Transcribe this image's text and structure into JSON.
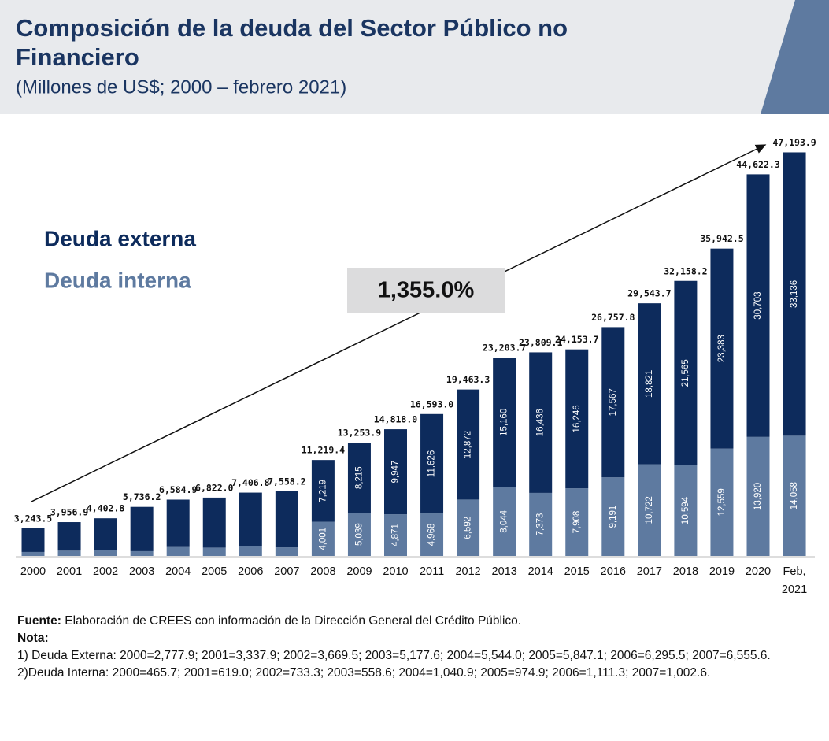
{
  "header": {
    "title_lines": [
      "Composición de la deuda del Sector Público no",
      "Financiero"
    ],
    "subtitle": "(Millones de US$; 2000 – febrero 2021)"
  },
  "chart_data": {
    "type": "stacked_bar",
    "categories": [
      "2000",
      "2001",
      "2002",
      "2003",
      "2004",
      "2005",
      "2006",
      "2007",
      "2008",
      "2009",
      "2010",
      "2011",
      "2012",
      "2013",
      "2014",
      "2015",
      "2016",
      "2017",
      "2018",
      "2019",
      "2020",
      "Feb, 2021"
    ],
    "series": [
      {
        "name": "Deuda interna",
        "color": "#5e7aa0",
        "values": [
          465.7,
          619.0,
          733.3,
          558.6,
          1040.9,
          974.9,
          1111.3,
          1002.6,
          4001,
          5039,
          4871,
          4968,
          6592,
          8044,
          7373,
          7908,
          9191,
          10722,
          10594,
          12559,
          13920,
          14058
        ],
        "value_labels": [
          null,
          null,
          null,
          null,
          null,
          null,
          null,
          null,
          "4,001",
          "5,039",
          "4,871",
          "4,968",
          "6,592",
          "8,044",
          "7,373",
          "7,908",
          "9,191",
          "10,722",
          "10,594",
          "12,559",
          "13,920",
          "14,058"
        ]
      },
      {
        "name": "Deuda externa",
        "color": "#0d2b5c",
        "values": [
          2777.9,
          3337.9,
          3669.5,
          5177.6,
          5544.0,
          5847.1,
          6295.5,
          6555.6,
          7219,
          8215,
          9947,
          11626,
          12872,
          15160,
          16436,
          16246,
          17567,
          18821,
          21565,
          23383,
          30703,
          33136
        ],
        "value_labels": [
          null,
          null,
          null,
          null,
          null,
          null,
          null,
          null,
          "7,219",
          "8,215",
          "9,947",
          "11,626",
          "12,872",
          "15,160",
          "16,436",
          "16,246",
          "17,567",
          "18,821",
          "21,565",
          "23,383",
          "30,703",
          "33,136"
        ]
      }
    ],
    "total_labels": [
      "3,243.5",
      "3,956.9",
      "4,402.8",
      "5,736.2",
      "6,584.9",
      "6,822.0",
      "7,406.8",
      "7,558.2",
      "11,219.4",
      "13,253.9",
      "14,818.0",
      "16,593.0",
      "19,463.3",
      "23,203.7",
      "23,809.1",
      "24,153.7",
      "26,757.8",
      "29,543.7",
      "32,158.2",
      "35,942.5",
      "44,622.3",
      "47,193.9"
    ],
    "ylim": [
      0,
      50000
    ],
    "annotation": "1,355.0%"
  },
  "footer": {
    "source_label": "Fuente:",
    "source": "Elaboración de CREES con información de la Dirección General del Crédito Público.",
    "note_label": "Nota:",
    "notes": [
      "1) Deuda Externa: 2000=2,777.9; 2001=3,337.9; 2002=3,669.5; 2003=5,177.6; 2004=5,544.0; 2005=5,847.1; 2006=6,295.5; 2007=6,555.6.",
      "2)Deuda Interna: 2000=465.7; 2001=619.0; 2002=733.3; 2003=558.6; 2004=1,040.9; 2005=974.9; 2006=1,111.3; 2007=1,002.6."
    ]
  }
}
